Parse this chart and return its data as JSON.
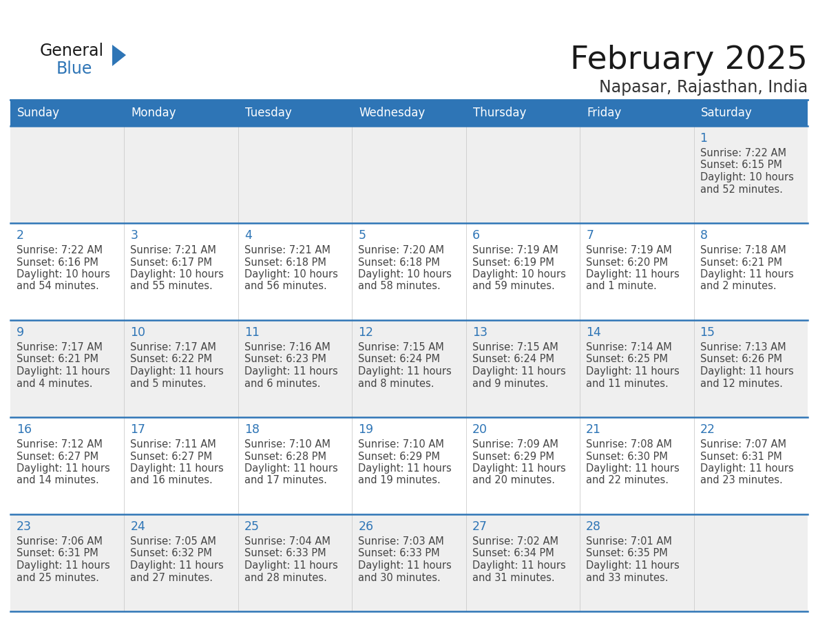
{
  "title": "February 2025",
  "subtitle": "Napasar, Rajasthan, India",
  "header_bg": "#2E75B6",
  "header_text_color": "#FFFFFF",
  "cell_bg_white": "#FFFFFF",
  "cell_bg_gray": "#EFEFEF",
  "cell_border_color": "#2E75B6",
  "day_number_color": "#2E75B6",
  "cell_text_color": "#444444",
  "days_of_week": [
    "Sunday",
    "Monday",
    "Tuesday",
    "Wednesday",
    "Thursday",
    "Friday",
    "Saturday"
  ],
  "calendar_data": [
    [
      null,
      null,
      null,
      null,
      null,
      null,
      {
        "day": "1",
        "sunrise": "7:22 AM",
        "sunset": "6:15 PM",
        "daylight_l1": "10 hours",
        "daylight_l2": "and 52 minutes."
      }
    ],
    [
      {
        "day": "2",
        "sunrise": "7:22 AM",
        "sunset": "6:16 PM",
        "daylight_l1": "10 hours",
        "daylight_l2": "and 54 minutes."
      },
      {
        "day": "3",
        "sunrise": "7:21 AM",
        "sunset": "6:17 PM",
        "daylight_l1": "10 hours",
        "daylight_l2": "and 55 minutes."
      },
      {
        "day": "4",
        "sunrise": "7:21 AM",
        "sunset": "6:18 PM",
        "daylight_l1": "10 hours",
        "daylight_l2": "and 56 minutes."
      },
      {
        "day": "5",
        "sunrise": "7:20 AM",
        "sunset": "6:18 PM",
        "daylight_l1": "10 hours",
        "daylight_l2": "and 58 minutes."
      },
      {
        "day": "6",
        "sunrise": "7:19 AM",
        "sunset": "6:19 PM",
        "daylight_l1": "10 hours",
        "daylight_l2": "and 59 minutes."
      },
      {
        "day": "7",
        "sunrise": "7:19 AM",
        "sunset": "6:20 PM",
        "daylight_l1": "11 hours",
        "daylight_l2": "and 1 minute."
      },
      {
        "day": "8",
        "sunrise": "7:18 AM",
        "sunset": "6:21 PM",
        "daylight_l1": "11 hours",
        "daylight_l2": "and 2 minutes."
      }
    ],
    [
      {
        "day": "9",
        "sunrise": "7:17 AM",
        "sunset": "6:21 PM",
        "daylight_l1": "11 hours",
        "daylight_l2": "and 4 minutes."
      },
      {
        "day": "10",
        "sunrise": "7:17 AM",
        "sunset": "6:22 PM",
        "daylight_l1": "11 hours",
        "daylight_l2": "and 5 minutes."
      },
      {
        "day": "11",
        "sunrise": "7:16 AM",
        "sunset": "6:23 PM",
        "daylight_l1": "11 hours",
        "daylight_l2": "and 6 minutes."
      },
      {
        "day": "12",
        "sunrise": "7:15 AM",
        "sunset": "6:24 PM",
        "daylight_l1": "11 hours",
        "daylight_l2": "and 8 minutes."
      },
      {
        "day": "13",
        "sunrise": "7:15 AM",
        "sunset": "6:24 PM",
        "daylight_l1": "11 hours",
        "daylight_l2": "and 9 minutes."
      },
      {
        "day": "14",
        "sunrise": "7:14 AM",
        "sunset": "6:25 PM",
        "daylight_l1": "11 hours",
        "daylight_l2": "and 11 minutes."
      },
      {
        "day": "15",
        "sunrise": "7:13 AM",
        "sunset": "6:26 PM",
        "daylight_l1": "11 hours",
        "daylight_l2": "and 12 minutes."
      }
    ],
    [
      {
        "day": "16",
        "sunrise": "7:12 AM",
        "sunset": "6:27 PM",
        "daylight_l1": "11 hours",
        "daylight_l2": "and 14 minutes."
      },
      {
        "day": "17",
        "sunrise": "7:11 AM",
        "sunset": "6:27 PM",
        "daylight_l1": "11 hours",
        "daylight_l2": "and 16 minutes."
      },
      {
        "day": "18",
        "sunrise": "7:10 AM",
        "sunset": "6:28 PM",
        "daylight_l1": "11 hours",
        "daylight_l2": "and 17 minutes."
      },
      {
        "day": "19",
        "sunrise": "7:10 AM",
        "sunset": "6:29 PM",
        "daylight_l1": "11 hours",
        "daylight_l2": "and 19 minutes."
      },
      {
        "day": "20",
        "sunrise": "7:09 AM",
        "sunset": "6:29 PM",
        "daylight_l1": "11 hours",
        "daylight_l2": "and 20 minutes."
      },
      {
        "day": "21",
        "sunrise": "7:08 AM",
        "sunset": "6:30 PM",
        "daylight_l1": "11 hours",
        "daylight_l2": "and 22 minutes."
      },
      {
        "day": "22",
        "sunrise": "7:07 AM",
        "sunset": "6:31 PM",
        "daylight_l1": "11 hours",
        "daylight_l2": "and 23 minutes."
      }
    ],
    [
      {
        "day": "23",
        "sunrise": "7:06 AM",
        "sunset": "6:31 PM",
        "daylight_l1": "11 hours",
        "daylight_l2": "and 25 minutes."
      },
      {
        "day": "24",
        "sunrise": "7:05 AM",
        "sunset": "6:32 PM",
        "daylight_l1": "11 hours",
        "daylight_l2": "and 27 minutes."
      },
      {
        "day": "25",
        "sunrise": "7:04 AM",
        "sunset": "6:33 PM",
        "daylight_l1": "11 hours",
        "daylight_l2": "and 28 minutes."
      },
      {
        "day": "26",
        "sunrise": "7:03 AM",
        "sunset": "6:33 PM",
        "daylight_l1": "11 hours",
        "daylight_l2": "and 30 minutes."
      },
      {
        "day": "27",
        "sunrise": "7:02 AM",
        "sunset": "6:34 PM",
        "daylight_l1": "11 hours",
        "daylight_l2": "and 31 minutes."
      },
      {
        "day": "28",
        "sunrise": "7:01 AM",
        "sunset": "6:35 PM",
        "daylight_l1": "11 hours",
        "daylight_l2": "and 33 minutes."
      },
      null
    ]
  ]
}
